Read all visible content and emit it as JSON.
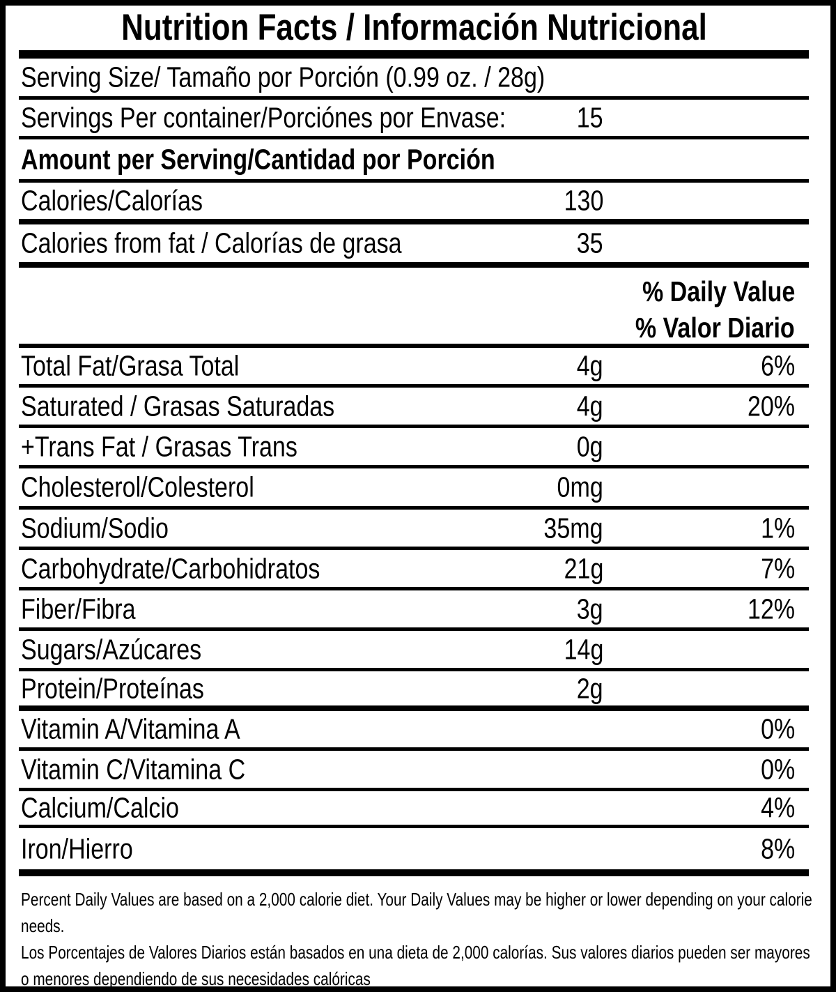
{
  "title": "Nutrition Facts / Información Nutricional",
  "serving": {
    "size": "Serving Size/ Tamaño por Porción  (0.99 oz. / 28g)",
    "per_container_label": "Servings Per container/Porciónes por Envase:",
    "per_container_value": "15"
  },
  "section_header": "Amount per Serving/Cantidad por Porción",
  "calories": {
    "label": "Calories/Calorías",
    "value": "130"
  },
  "calories_from_fat": {
    "label": "Calories from fat / Calorías de grasa",
    "value": "35"
  },
  "daily_value_header": {
    "en": "% Daily Value",
    "es": "% Valor Diario"
  },
  "nutrients": [
    {
      "label": "Total Fat/Grasa Total",
      "amount": "4g",
      "dv": "6%"
    },
    {
      "label": "Saturated / Grasas Saturadas",
      "amount": "4g",
      "dv": "20%"
    },
    {
      "label": "+Trans Fat / Grasas Trans",
      "amount": "0g",
      "dv": ""
    },
    {
      "label": "Cholesterol/Colesterol",
      "amount": "0mg",
      "dv": ""
    },
    {
      "label": "Sodium/Sodio",
      "amount": "35mg",
      "dv": "1%"
    },
    {
      "label": "Carbohydrate/Carbohidratos",
      "amount": "21g",
      "dv": "7%"
    },
    {
      "label": "Fiber/Fibra",
      "amount": "3g",
      "dv": "12%"
    },
    {
      "label": "Sugars/Azúcares",
      "amount": "14g",
      "dv": ""
    },
    {
      "label": "Protein/Proteínas",
      "amount": "2g",
      "dv": ""
    },
    {
      "label": "Vitamin A/Vitamina A",
      "amount": "",
      "dv": "0%"
    },
    {
      "label": "Vitamin C/Vitamina C",
      "amount": "",
      "dv": "0%"
    },
    {
      "label": "Calcium/Calcio",
      "amount": "",
      "dv": "4%"
    },
    {
      "label": "Iron/Hierro",
      "amount": "",
      "dv": "8%"
    }
  ],
  "footnote": {
    "en": "Percent Daily Values are based on a 2,000 calorie diet. Your Daily Values may be higher or lower depending on your calorie needs.",
    "es": "Los Porcentajes de Valores Diarios están basados en una dieta de 2,000 calorías. Sus valores diarios pueden ser mayores o menores dependiendo de sus necesidades calóricas"
  }
}
